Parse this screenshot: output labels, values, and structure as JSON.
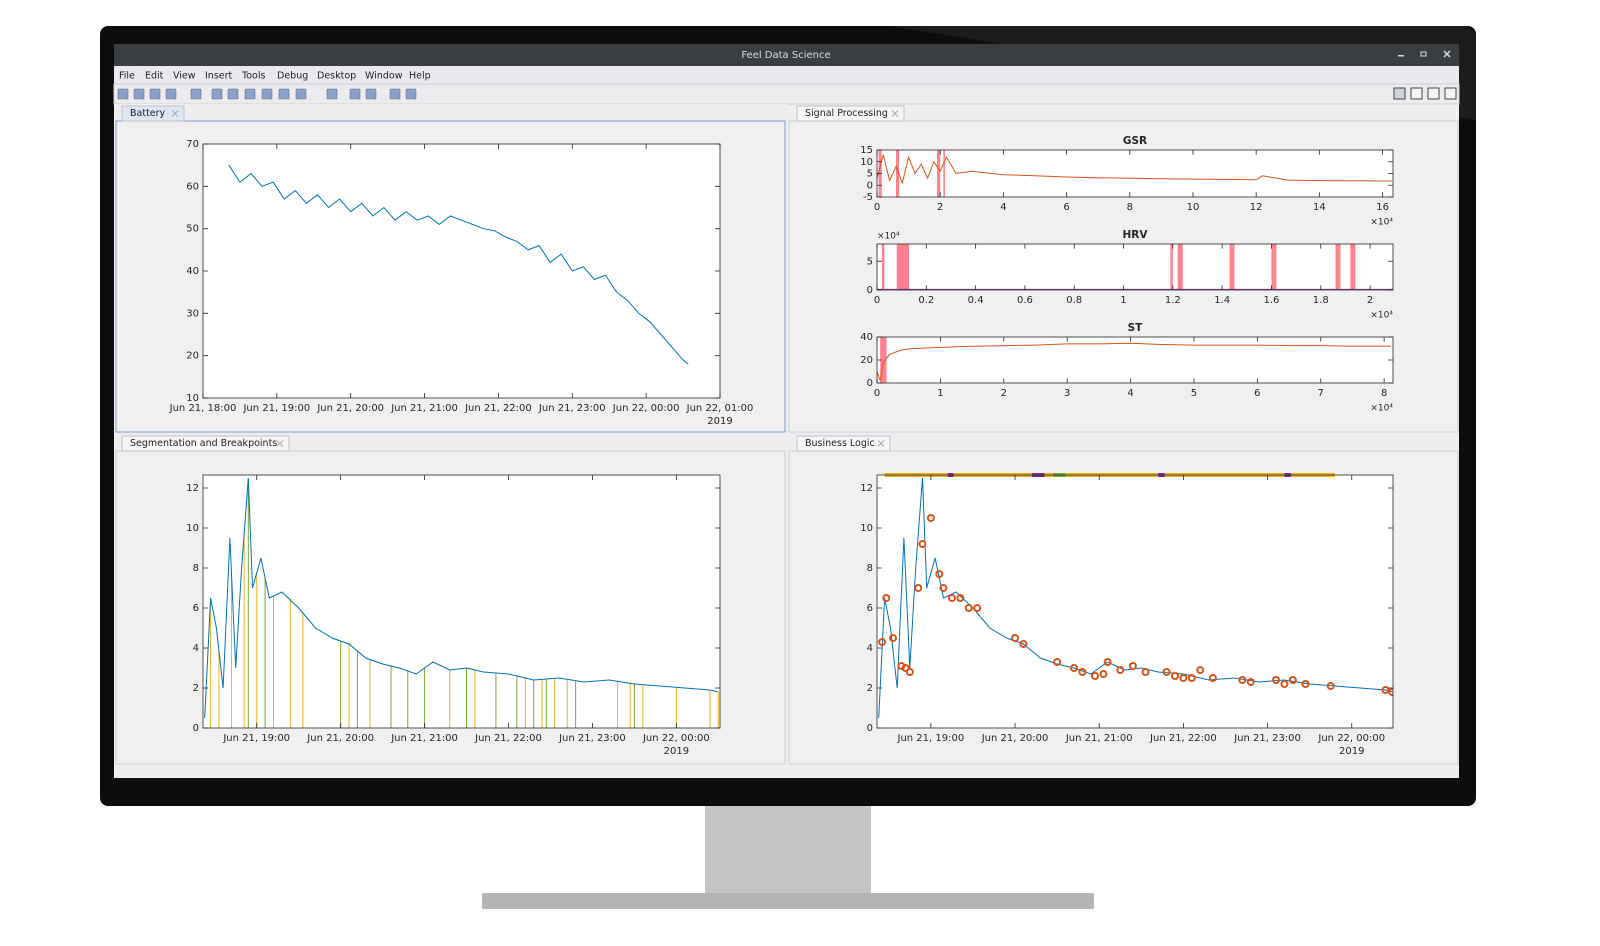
{
  "window": {
    "title": "Feel Data Science"
  },
  "menu": [
    "File",
    "Edit",
    "View",
    "Insert",
    "Tools",
    "Debug",
    "Desktop",
    "Window",
    "Help"
  ],
  "panels": [
    {
      "tab": "Battery",
      "charts": [
        {
          "type": "line",
          "xlim": [
            18,
            25
          ],
          "ylim": [
            10,
            70
          ],
          "xticks": [
            {
              "value": 18,
              "label": "Jun 21, 18:00"
            },
            {
              "value": 19,
              "label": "Jun 21, 19:00"
            },
            {
              "value": 20,
              "label": "Jun 21, 20:00"
            },
            {
              "value": 21,
              "label": "Jun 21, 21:00"
            },
            {
              "value": 22,
              "label": "Jun 21, 22:00"
            },
            {
              "value": 23,
              "label": "Jun 21, 23:00"
            },
            {
              "value": 24,
              "label": "Jun 22, 00:00"
            },
            {
              "value": 25,
              "label": "Jun 22, 01:00"
            }
          ],
          "yticks": [
            10,
            20,
            30,
            40,
            50,
            60,
            70
          ],
          "x_note": "2019",
          "series": [
            {
              "color": "#0072bd",
              "x": [
                18.35,
                18.5,
                18.65,
                18.8,
                18.95,
                19.1,
                19.25,
                19.4,
                19.55,
                19.7,
                19.85,
                20.0,
                20.15,
                20.3,
                20.45,
                20.6,
                20.75,
                20.9,
                21.05,
                21.2,
                21.35,
                21.5,
                21.65,
                21.8,
                21.95,
                22.1,
                22.25,
                22.4,
                22.55,
                22.7,
                22.85,
                23.0,
                23.15,
                23.3,
                23.45,
                23.6,
                23.75,
                23.9,
                24.05,
                24.2,
                24.35,
                24.5,
                24.57
              ],
              "values": [
                65,
                61,
                63,
                60,
                61,
                57,
                59,
                56,
                58,
                55,
                57,
                54,
                56,
                53,
                55,
                52,
                54,
                52,
                53,
                51,
                53,
                52,
                51,
                50,
                49.5,
                48,
                47,
                45,
                46,
                42,
                44,
                40,
                41,
                38,
                39,
                35,
                33,
                30,
                28,
                25,
                22,
                19,
                18
              ]
            }
          ]
        }
      ]
    },
    {
      "tab": "Signal Processing",
      "charts": [
        {
          "type": "line",
          "title": "GSR",
          "xlim": [
            0,
            16.33
          ],
          "ylim": [
            -5,
            15
          ],
          "xticks": [
            0,
            2,
            4,
            6,
            8,
            10,
            12,
            14,
            16
          ],
          "yticks": [
            -5,
            0,
            5,
            10,
            15
          ],
          "x_exponent": "×10⁴",
          "bands": {
            "color": "#ff6b7a",
            "x0": [
              0.05,
              0.6,
              1.9,
              2.1
            ],
            "x1": [
              0.15,
              0.7,
              2.0,
              2.15
            ],
            "values": [
              15,
              15,
              15,
              15
            ]
          },
          "series": [
            {
              "color": "#d95319",
              "x": [
                0,
                0.2,
                0.4,
                0.6,
                0.8,
                1,
                1.2,
                1.4,
                1.6,
                1.8,
                2,
                2.2,
                2.5,
                3,
                4,
                5,
                6,
                7,
                8,
                9,
                10,
                11,
                12,
                12.2,
                13,
                14,
                15,
                16,
                16.3
              ],
              "values": [
                3,
                13,
                2,
                8,
                1,
                12,
                5,
                9,
                3,
                10,
                6,
                12,
                5,
                6,
                4.5,
                4,
                3.5,
                3.2,
                3,
                2.8,
                2.6,
                2.5,
                2.3,
                4,
                2.2,
                2,
                1.9,
                1.8,
                1.8
              ]
            }
          ]
        },
        {
          "type": "line",
          "title": "HRV",
          "xlim": [
            0,
            2.093
          ],
          "ylim": [
            0,
            8
          ],
          "xticks": [
            0,
            0.2,
            0.4,
            0.6,
            0.8,
            1,
            1.2,
            1.4,
            1.6,
            1.8,
            2
          ],
          "yticks": [
            0,
            5
          ],
          "x_exponent": "×10⁴",
          "y_exponent": "×10⁴",
          "bands": {
            "color": "#ff6b7a",
            "x0": [
              0.02,
              0.08,
              1.19,
              1.22,
              1.43,
              1.6,
              1.86,
              1.92
            ],
            "x1": [
              0.03,
              0.13,
              1.2,
              1.24,
              1.45,
              1.62,
              1.88,
              1.94
            ],
            "values": [
              8,
              8,
              8,
              8,
              8,
              8,
              8,
              8
            ]
          },
          "series": [
            {
              "color": "#7e2f8e",
              "x": [
                0,
                2.093
              ],
              "values": [
                0.1,
                0.1
              ]
            }
          ]
        },
        {
          "type": "line",
          "title": "ST",
          "xlim": [
            0,
            8.14
          ],
          "ylim": [
            0,
            40
          ],
          "xticks": [
            0,
            1,
            2,
            3,
            4,
            5,
            6,
            7,
            8
          ],
          "yticks": [
            0,
            20,
            40
          ],
          "x_exponent": "×10⁴",
          "bands": {
            "color": "#ff6b7a",
            "x0": [
              0.05
            ],
            "x1": [
              0.15
            ],
            "values": [
              40
            ]
          },
          "series": [
            {
              "color": "#d95319",
              "x": [
                0,
                0.05,
                0.1,
                0.2,
                0.4,
                0.6,
                1,
                1.5,
                2,
                2.5,
                3,
                3.5,
                4,
                4.5,
                5,
                5.5,
                6,
                6.5,
                7,
                7.5,
                8.1
              ],
              "values": [
                10,
                2,
                18,
                25,
                29,
                30,
                31,
                32,
                32.5,
                33,
                34,
                34,
                34.5,
                33.5,
                33,
                33,
                33,
                32.5,
                32.5,
                32,
                32
              ]
            }
          ]
        }
      ]
    },
    {
      "tab": "Segmentation and Breakpoints",
      "charts": [
        {
          "type": "line",
          "xlim": [
            18.36,
            24.52
          ],
          "ylim": [
            0,
            12.65
          ],
          "xticks": [
            {
              "value": 19,
              "label": "Jun 21, 19:00"
            },
            {
              "value": 20,
              "label": "Jun 21, 20:00"
            },
            {
              "value": 21,
              "label": "Jun 21, 21:00"
            },
            {
              "value": 22,
              "label": "Jun 21, 22:00"
            },
            {
              "value": 23,
              "label": "Jun 21, 23:00"
            },
            {
              "value": 24,
              "label": "Jun 22, 00:00"
            }
          ],
          "yticks": [
            0,
            2,
            4,
            6,
            8,
            10,
            12
          ],
          "x_note": "2019",
          "breakpoints": [
            {
              "color": "#edb120",
              "x": [
                18.45,
                18.55,
                18.7,
                18.85,
                19.0,
                19.2,
                19.4,
                19.55,
                20.1,
                20.35,
                21.3,
                21.6,
                22.2,
                22.4,
                22.55,
                22.7,
                23.3,
                23.45,
                23.6,
                24.0,
                24.4,
                24.5
              ]
            },
            {
              "color": "#77ac30",
              "x": [
                18.9,
                19.1,
                20.0,
                20.2,
                20.6,
                20.8,
                21.0,
                21.5,
                21.85,
                22.1,
                22.3,
                22.45,
                22.8,
                23.5
              ]
            }
          ],
          "series": [
            {
              "color": "#0072bd",
              "x": [
                18.38,
                18.45,
                18.52,
                18.6,
                18.68,
                18.75,
                18.82,
                18.9,
                18.95,
                19.05,
                19.15,
                19.3,
                19.5,
                19.7,
                19.9,
                20.1,
                20.3,
                20.5,
                20.7,
                20.9,
                21.1,
                21.3,
                21.5,
                21.7,
                22.0,
                22.3,
                22.6,
                22.9,
                23.2,
                23.5,
                23.8,
                24.1,
                24.4,
                24.5
              ],
              "values": [
                0.5,
                6.5,
                5,
                2,
                9.5,
                3,
                8,
                12.5,
                7,
                8.5,
                6.5,
                6.8,
                6,
                5,
                4.5,
                4.2,
                3.5,
                3.2,
                3,
                2.7,
                3.3,
                2.9,
                3,
                2.8,
                2.7,
                2.4,
                2.5,
                2.3,
                2.4,
                2.2,
                2.1,
                2.0,
                1.9,
                1.8
              ]
            }
          ]
        }
      ]
    },
    {
      "tab": "Business Logic",
      "charts": [
        {
          "type": "line",
          "xlim": [
            18.36,
            24.49
          ],
          "ylim": [
            0,
            12.65
          ],
          "xticks": [
            {
              "value": 19,
              "label": "Jun 21, 19:00"
            },
            {
              "value": 20,
              "label": "Jun 21, 20:00"
            },
            {
              "value": 21,
              "label": "Jun 21, 21:00"
            },
            {
              "value": 22,
              "label": "Jun 21, 22:00"
            },
            {
              "value": 23,
              "label": "Jun 21, 23:00"
            },
            {
              "value": 24,
              "label": "Jun 22, 00:00"
            }
          ],
          "yticks": [
            0,
            2,
            4,
            6,
            8,
            10,
            12
          ],
          "x_note": "2019",
          "state_bar": {
            "x0": [
              18.45,
              19.2,
              19.27,
              20.2,
              20.35,
              20.45,
              20.6,
              21.7,
              21.78,
              23.2,
              23.28
            ],
            "x1": [
              19.2,
              19.27,
              20.2,
              20.35,
              20.45,
              20.6,
              21.7,
              21.78,
              23.2,
              23.28,
              23.8
            ],
            "colors": [
              "#edb120",
              "#7e2f8e",
              "#edb120",
              "#7e2f8e",
              "#edb120",
              "#77ac30",
              "#edb120",
              "#7e2f8e",
              "#edb120",
              "#7e2f8e",
              "#edb120"
            ]
          },
          "markers": {
            "color": "#d95319",
            "x": [
              18.42,
              18.47,
              18.55,
              18.65,
              18.7,
              18.75,
              18.85,
              18.9,
              19.0,
              19.1,
              19.15,
              19.25,
              19.35,
              19.45,
              19.55,
              20.0,
              20.1,
              20.5,
              20.7,
              20.8,
              20.95,
              21.05,
              21.1,
              21.25,
              21.4,
              21.55,
              21.8,
              21.9,
              22.0,
              22.1,
              22.2,
              22.35,
              22.7,
              22.8,
              23.1,
              23.2,
              23.3,
              23.45,
              23.75,
              24.4,
              24.48
            ],
            "values": [
              4.3,
              6.5,
              4.5,
              3.1,
              3,
              2.8,
              7,
              9.2,
              10.5,
              7.7,
              7,
              6.5,
              6.5,
              6,
              6,
              4.5,
              4.2,
              3.3,
              3,
              2.8,
              2.6,
              2.7,
              3.3,
              2.9,
              3.1,
              2.8,
              2.8,
              2.6,
              2.5,
              2.5,
              2.9,
              2.5,
              2.4,
              2.3,
              2.4,
              2.2,
              2.4,
              2.2,
              2.1,
              1.9,
              1.8
            ]
          },
          "series": [
            {
              "color": "#0072bd",
              "x": [
                18.38,
                18.45,
                18.52,
                18.6,
                18.68,
                18.75,
                18.82,
                18.9,
                18.95,
                19.05,
                19.15,
                19.3,
                19.5,
                19.7,
                19.9,
                20.1,
                20.3,
                20.5,
                20.7,
                20.9,
                21.1,
                21.3,
                21.5,
                21.7,
                22.0,
                22.3,
                22.6,
                22.9,
                23.2,
                23.5,
                23.8,
                24.1,
                24.4,
                24.49
              ],
              "values": [
                0.5,
                6.5,
                5,
                2,
                9.5,
                3,
                8,
                12.5,
                7,
                8.5,
                6.5,
                6.8,
                6,
                5,
                4.5,
                4.2,
                3.5,
                3.2,
                3,
                2.7,
                3.3,
                2.9,
                3,
                2.8,
                2.7,
                2.4,
                2.5,
                2.3,
                2.4,
                2.2,
                2.1,
                2.0,
                1.9,
                1.8
              ]
            }
          ]
        }
      ]
    }
  ]
}
